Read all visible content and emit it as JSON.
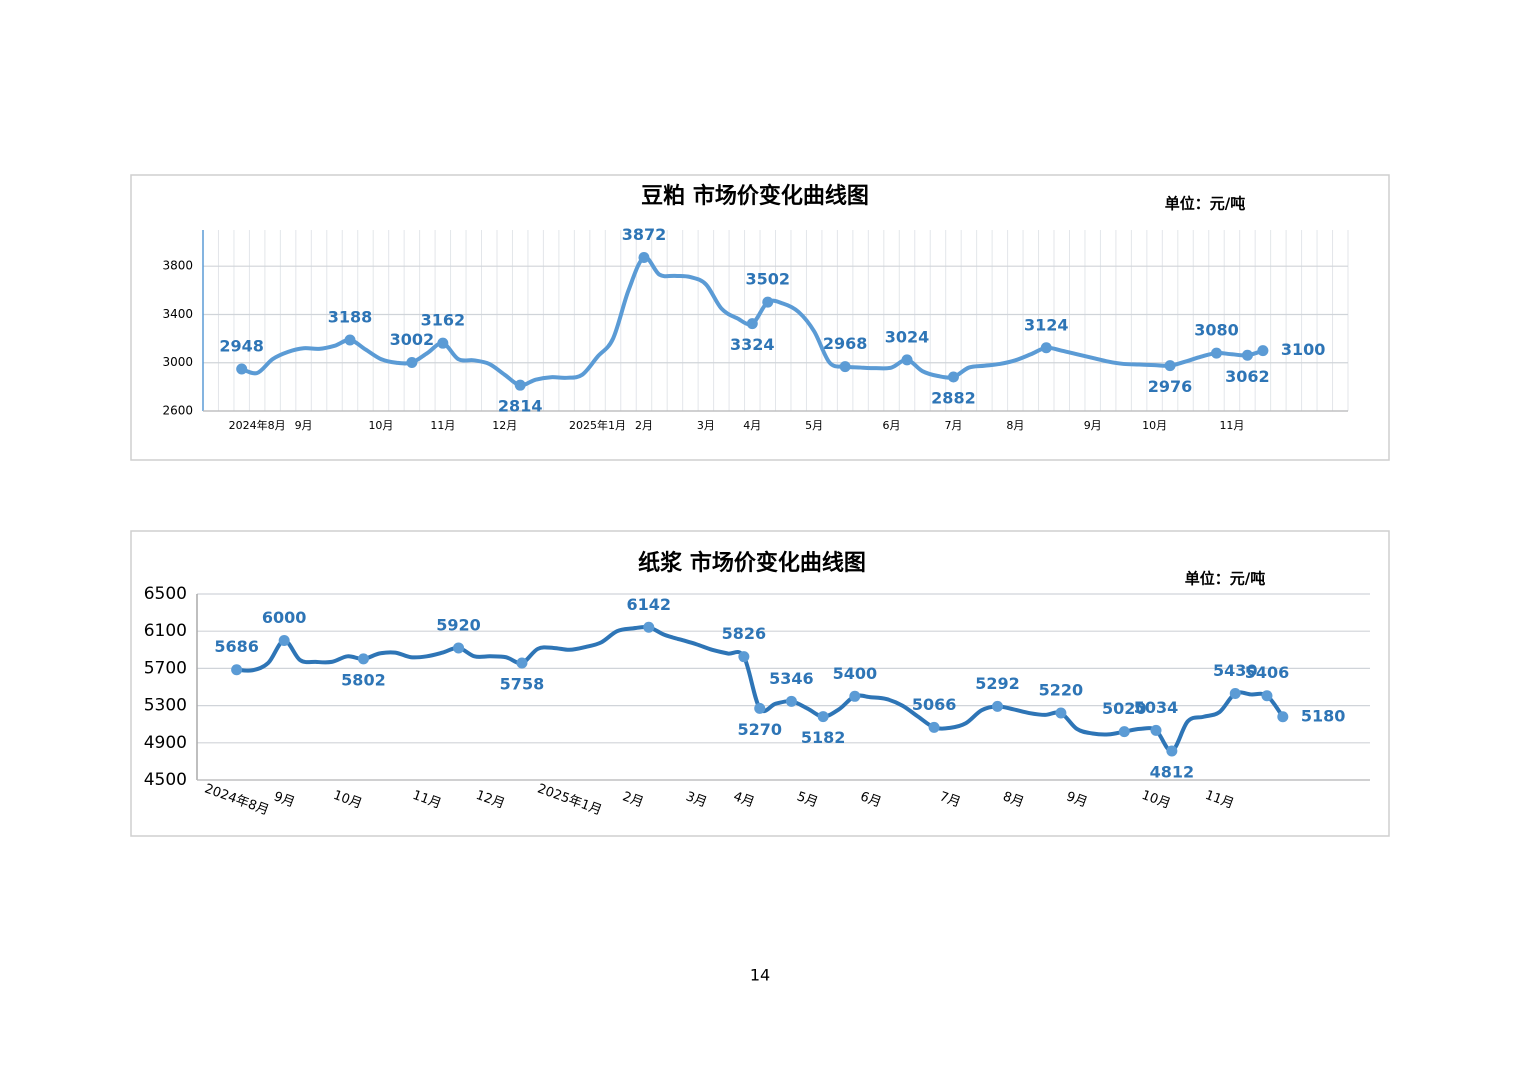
{
  "chart_data": [
    {
      "type": "line",
      "title": "豆粕 市场价变化曲线图",
      "unit_label": "单位：元/吨",
      "categories": [
        null,
        null,
        null,
        "2024年8月",
        null,
        null,
        "9月",
        null,
        null,
        null,
        null,
        "10月",
        null,
        null,
        null,
        "11月",
        null,
        null,
        null,
        "12月",
        null,
        null,
        null,
        null,
        null,
        "2025年1月",
        null,
        null,
        "2月",
        null,
        null,
        null,
        "3月",
        null,
        null,
        "4月",
        null,
        null,
        null,
        "5月",
        null,
        null,
        null,
        null,
        "6月",
        null,
        null,
        null,
        "7月",
        null,
        null,
        null,
        "8月",
        null,
        null,
        null,
        null,
        "9月",
        null,
        null,
        null,
        "10月",
        null,
        null,
        null,
        null,
        "11月",
        null,
        null,
        null,
        null,
        null,
        null,
        null
      ],
      "values": [
        null,
        null,
        2948,
        2915,
        3030,
        3090,
        3120,
        3115,
        3140,
        3188,
        3110,
        3030,
        3000,
        3002,
        3080,
        3162,
        3030,
        3020,
        2990,
        2900,
        2814,
        2860,
        2880,
        2875,
        2900,
        3050,
        3200,
        3600,
        3872,
        3730,
        3720,
        3710,
        3650,
        3450,
        3370,
        3324,
        3502,
        3490,
        3420,
        3260,
        3000,
        2968,
        2960,
        2955,
        2960,
        3024,
        2930,
        2890,
        2882,
        2960,
        2975,
        2990,
        3020,
        3070,
        3124,
        3100,
        3070,
        3040,
        3010,
        2990,
        2985,
        2980,
        2976,
        3010,
        3050,
        3080,
        3070,
        3062,
        3100,
        null,
        null,
        null,
        null,
        null
      ],
      "value_labels": [
        null,
        null,
        "2948",
        null,
        null,
        null,
        null,
        null,
        null,
        "3188",
        null,
        null,
        null,
        "3002",
        null,
        "3162",
        null,
        null,
        null,
        null,
        "2814",
        null,
        null,
        null,
        null,
        null,
        null,
        null,
        "3872",
        null,
        null,
        null,
        null,
        null,
        null,
        "3324",
        "3502",
        null,
        null,
        null,
        null,
        "2968",
        null,
        null,
        null,
        "3024",
        null,
        null,
        "2882",
        null,
        null,
        null,
        null,
        null,
        "3124",
        null,
        null,
        null,
        null,
        null,
        null,
        null,
        "2976",
        null,
        null,
        "3080",
        null,
        "3062",
        "3100",
        null,
        null,
        null,
        null,
        null
      ],
      "color": "#5b9bd5",
      "marker_color": "#5b9bd5",
      "ylim": [
        2600,
        4100
      ],
      "yticks": [
        2600,
        3000,
        3400,
        3800
      ],
      "grid": true,
      "xgrid": true
    },
    {
      "type": "line",
      "title": "纸浆 市场价变化曲线图",
      "unit_label": "单位：元/吨",
      "categories": [
        null,
        null,
        "2024年8月",
        null,
        null,
        "9月",
        null,
        null,
        null,
        "10月",
        null,
        null,
        null,
        null,
        "11月",
        null,
        null,
        null,
        "12月",
        null,
        null,
        null,
        null,
        "2025年1月",
        null,
        null,
        null,
        "2月",
        null,
        null,
        null,
        "3月",
        null,
        null,
        "4月",
        null,
        null,
        null,
        "5月",
        null,
        null,
        null,
        "6月",
        null,
        null,
        null,
        null,
        "7月",
        null,
        null,
        null,
        "8月",
        null,
        null,
        null,
        "9月",
        null,
        null,
        null,
        null,
        "10月",
        null,
        null,
        null,
        "11月",
        null,
        null,
        null,
        null,
        null,
        null,
        null,
        null,
        null
      ],
      "values": [
        null,
        null,
        5686,
        5680,
        5760,
        6000,
        5790,
        5770,
        5770,
        5830,
        5802,
        5860,
        5870,
        5820,
        5830,
        5870,
        5920,
        5830,
        5830,
        5820,
        5758,
        5910,
        5920,
        5900,
        5930,
        5980,
        6100,
        6130,
        6142,
        6060,
        6010,
        5960,
        5900,
        5860,
        5826,
        5270,
        5320,
        5346,
        5270,
        5182,
        5260,
        5400,
        5390,
        5370,
        5300,
        5180,
        5066,
        5060,
        5110,
        5250,
        5292,
        5260,
        5220,
        5200,
        5220,
        5050,
        5000,
        4990,
        5020,
        5050,
        5034,
        4812,
        5130,
        5180,
        5230,
        5430,
        5420,
        5406,
        5180,
        null,
        null,
        null,
        null,
        null
      ],
      "value_labels": [
        null,
        null,
        "5686",
        null,
        null,
        "6000",
        null,
        null,
        null,
        null,
        "5802",
        null,
        null,
        null,
        null,
        null,
        "5920",
        null,
        null,
        null,
        "5758",
        null,
        null,
        null,
        null,
        null,
        null,
        null,
        "6142",
        null,
        null,
        null,
        null,
        null,
        "5826",
        "5270",
        null,
        "5346",
        null,
        "5182",
        null,
        "5400",
        null,
        null,
        null,
        null,
        "5066",
        null,
        null,
        null,
        "5292",
        null,
        null,
        null,
        "5220",
        null,
        null,
        null,
        "5020",
        null,
        "5034",
        "4812",
        null,
        null,
        null,
        "5430",
        null,
        "5406",
        "5180",
        null,
        null,
        null,
        null,
        null
      ],
      "color": "#2e75b6",
      "marker_color": "#5b9bd5",
      "ylim": [
        4500,
        6500
      ],
      "yticks": [
        4500,
        4900,
        5300,
        5700,
        6100,
        6500
      ],
      "grid": true,
      "xgrid": false
    }
  ],
  "page_number": "14"
}
